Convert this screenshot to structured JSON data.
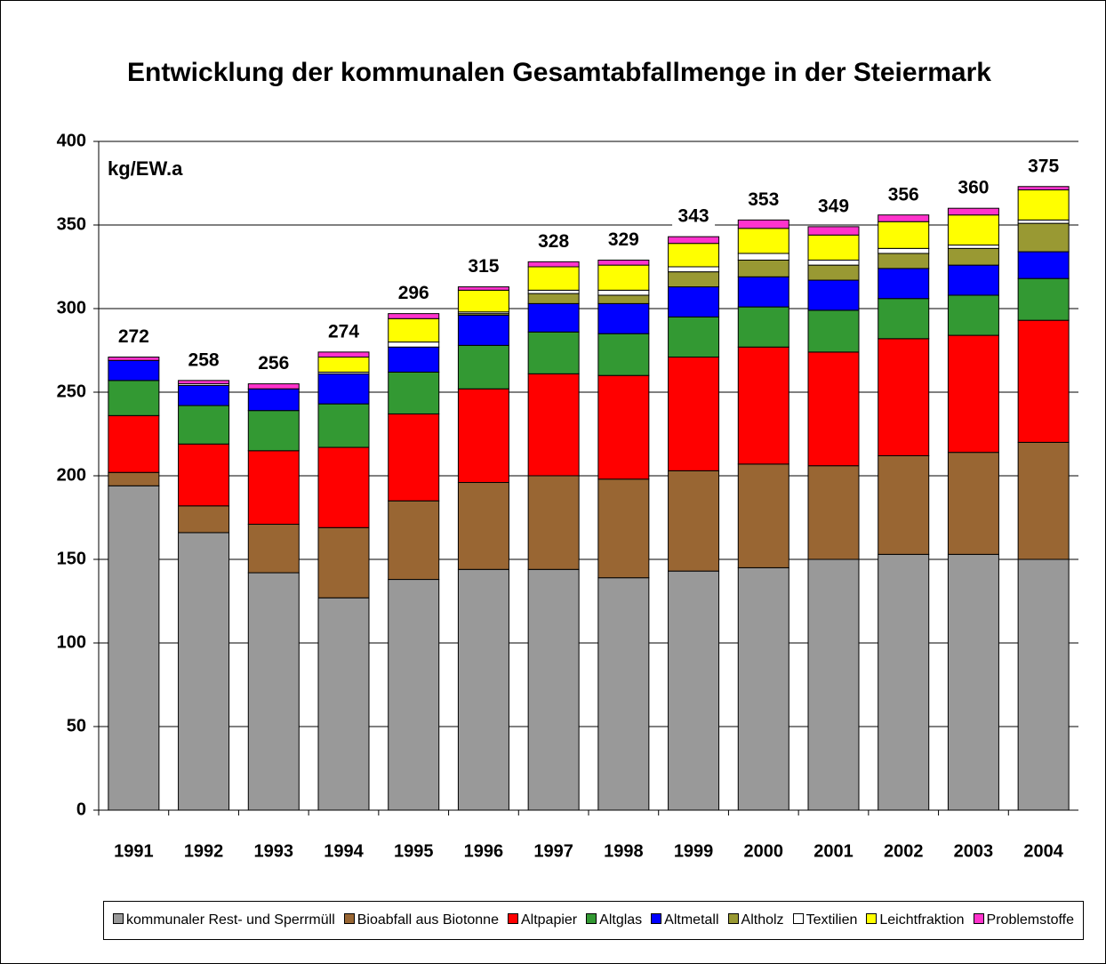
{
  "chart_data": {
    "type": "stacked-bar",
    "title": "Entwicklung der kommunalen Gesamtabfallmenge in der Steiermark",
    "unit_label": "kg/EW.a",
    "categories": [
      "1991",
      "1992",
      "1993",
      "1994",
      "1995",
      "1996",
      "1997",
      "1998",
      "1999",
      "2000",
      "2001",
      "2002",
      "2003",
      "2004"
    ],
    "total_labels": [
      272,
      258,
      256,
      274,
      296,
      315,
      328,
      329,
      343,
      353,
      349,
      356,
      360,
      375
    ],
    "series": [
      {
        "name": "kommunaler Rest- und Sperrmüll",
        "color": "#999999",
        "values": [
          194,
          166,
          142,
          127,
          138,
          144,
          144,
          139,
          143,
          145,
          150,
          153,
          153,
          150
        ]
      },
      {
        "name": "Bioabfall aus Biotonne",
        "color": "#996633",
        "values": [
          8,
          16,
          29,
          42,
          47,
          52,
          56,
          59,
          60,
          62,
          56,
          59,
          61,
          70
        ]
      },
      {
        "name": "Altpapier",
        "color": "#ff0000",
        "values": [
          34,
          37,
          44,
          48,
          52,
          56,
          61,
          62,
          68,
          70,
          68,
          70,
          70,
          73
        ]
      },
      {
        "name": "Altglas",
        "color": "#339933",
        "values": [
          21,
          23,
          24,
          26,
          25,
          26,
          25,
          25,
          24,
          24,
          25,
          24,
          24,
          25
        ]
      },
      {
        "name": "Altmetall",
        "color": "#0000ff",
        "values": [
          12,
          12,
          13,
          18,
          15,
          18,
          17,
          18,
          18,
          18,
          18,
          18,
          18,
          16
        ]
      },
      {
        "name": "Altholz",
        "color": "#999933",
        "values": [
          0,
          0,
          0,
          0,
          0,
          1,
          6,
          5,
          9,
          10,
          9,
          9,
          10,
          17
        ]
      },
      {
        "name": "Textilien",
        "color": "#ffffff",
        "values": [
          0,
          1,
          0,
          1,
          3,
          1,
          2,
          3,
          3,
          4,
          3,
          3,
          2,
          2
        ]
      },
      {
        "name": "Leichtfraktion",
        "color": "#ffff00",
        "values": [
          0,
          0,
          0,
          9,
          14,
          13,
          14,
          15,
          14,
          15,
          15,
          16,
          18,
          18
        ]
      },
      {
        "name": "Problemstoffe",
        "color": "#ff33cc",
        "values": [
          2,
          2,
          3,
          3,
          3,
          2,
          3,
          3,
          4,
          5,
          5,
          4,
          4,
          2
        ]
      }
    ],
    "ylim": [
      0,
      400
    ],
    "yticks": [
      0,
      50,
      100,
      150,
      200,
      250,
      300,
      350,
      400
    ],
    "grid": true
  }
}
